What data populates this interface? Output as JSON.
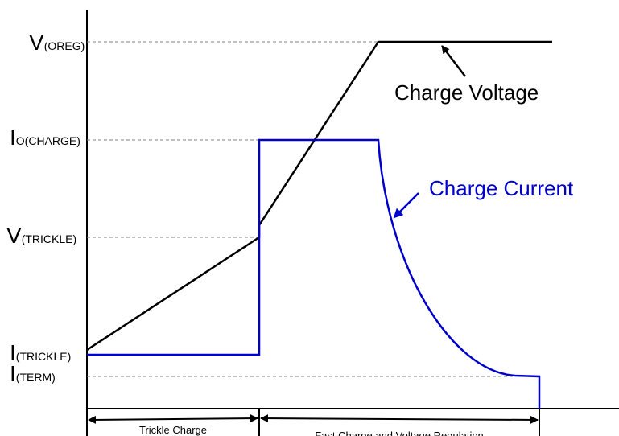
{
  "labels": [
    {
      "main": "V",
      "sub": "(OREG)"
    },
    {
      "main": "I",
      "sub": "O(CHARGE)"
    },
    {
      "main": "V",
      "sub": "(TRICKLE)"
    },
    {
      "main": "I",
      "sub": "(TRICKLE)"
    },
    {
      "main": "I",
      "sub": "(TERM)"
    }
  ],
  "annotations": {
    "voltage": "Charge Voltage",
    "current": "Charge Current"
  },
  "phases": [
    "Trickle Charge",
    "Fast Charge and Voltage Regulation"
  ]
}
